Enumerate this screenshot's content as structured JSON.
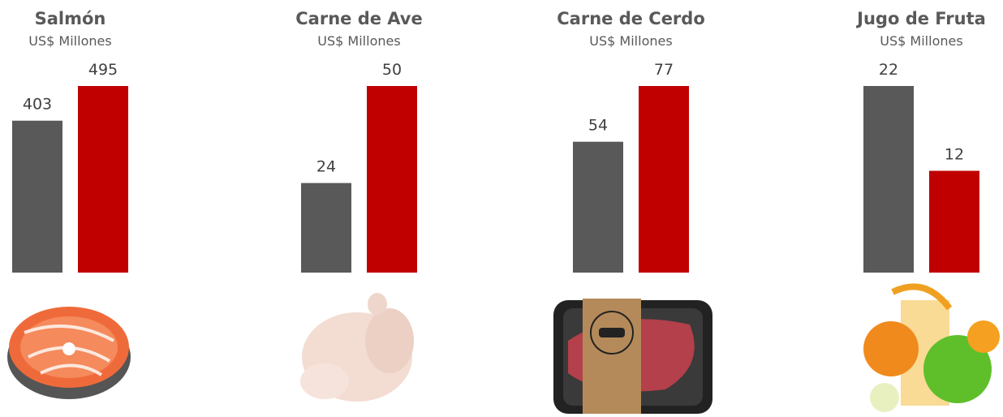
{
  "chart_data": [
    {
      "type": "bar",
      "title": "Salmón",
      "subtitle": "US$ Millones",
      "values": [
        403,
        495
      ],
      "colors": [
        "#595959",
        "#c00000"
      ]
    },
    {
      "type": "bar",
      "title": "Carne de Ave",
      "subtitle": "US$ Millones",
      "values": [
        24,
        50
      ],
      "colors": [
        "#595959",
        "#c00000"
      ]
    },
    {
      "type": "bar",
      "title": "Carne de Cerdo",
      "subtitle": "US$ Millones",
      "values": [
        54,
        77
      ],
      "colors": [
        "#595959",
        "#c00000"
      ]
    },
    {
      "type": "bar",
      "title": "Jugo de Fruta",
      "subtitle": "US$ Millones",
      "values": [
        22,
        12
      ],
      "colors": [
        "#595959",
        "#c00000"
      ]
    }
  ]
}
